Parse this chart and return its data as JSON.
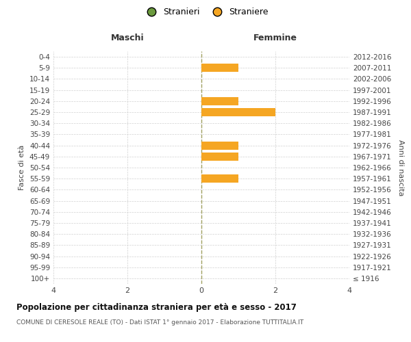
{
  "age_groups": [
    "100+",
    "95-99",
    "90-94",
    "85-89",
    "80-84",
    "75-79",
    "70-74",
    "65-69",
    "60-64",
    "55-59",
    "50-54",
    "45-49",
    "40-44",
    "35-39",
    "30-34",
    "25-29",
    "20-24",
    "15-19",
    "10-14",
    "5-9",
    "0-4"
  ],
  "birth_years": [
    "≤ 1916",
    "1917-1921",
    "1922-1926",
    "1927-1931",
    "1932-1936",
    "1937-1941",
    "1942-1946",
    "1947-1951",
    "1952-1956",
    "1957-1961",
    "1962-1966",
    "1967-1971",
    "1972-1976",
    "1977-1981",
    "1982-1986",
    "1987-1991",
    "1992-1996",
    "1997-2001",
    "2002-2006",
    "2007-2011",
    "2012-2016"
  ],
  "males": [
    0,
    0,
    0,
    0,
    0,
    0,
    0,
    0,
    0,
    0,
    0,
    0,
    0,
    0,
    0,
    0,
    0,
    0,
    0,
    0,
    0
  ],
  "females": [
    0,
    0,
    0,
    0,
    0,
    0,
    0,
    0,
    0,
    1,
    0,
    1,
    1,
    0,
    0,
    2,
    1,
    0,
    0,
    1,
    0
  ],
  "male_color": "#6b9a3e",
  "female_color": "#f5a623",
  "background_color": "#ffffff",
  "grid_color": "#d0d0d0",
  "center_line_color": "#a0a060",
  "xlim": 4,
  "title": "Popolazione per cittadinanza straniera per età e sesso - 2017",
  "subtitle": "COMUNE DI CERESOLE REALE (TO) - Dati ISTAT 1° gennaio 2017 - Elaborazione TUTTITALIA.IT",
  "ylabel_left": "Fasce di età",
  "ylabel_right": "Anni di nascita",
  "header_left": "Maschi",
  "header_right": "Femmine",
  "legend_male": "Stranieri",
  "legend_female": "Straniere"
}
